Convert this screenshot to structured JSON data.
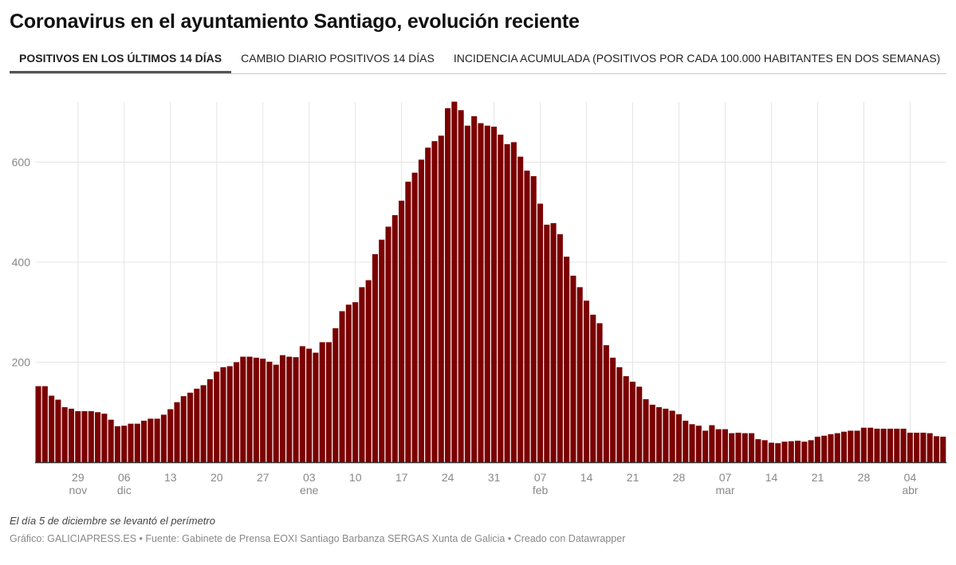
{
  "title": "Coronavirus en el ayuntamiento Santiago, evolución reciente",
  "tabs": [
    {
      "label": "POSITIVOS EN LOS ÚLTIMOS 14 DÍAS",
      "active": true
    },
    {
      "label": "CAMBIO DIARIO POSITIVOS 14 DÍAS",
      "active": false
    },
    {
      "label": "INCIDENCIA ACUMULADA (POSITIVOS POR CADA 100.000 HABITANTES EN DOS SEMANAS)",
      "active": false
    }
  ],
  "note": "El día 5 de diciembre se levantó el perímetro",
  "source": "Gráfico: GALICIAPRESS.ES • Fuente: Gabinete de Prensa EOXI Santiago Barbanza SERGAS Xunta de Galicia • Creado con Datawrapper",
  "chart_data": {
    "type": "bar",
    "title": "",
    "xlabel": "",
    "ylabel": "",
    "ylim": [
      0,
      720
    ],
    "grid": true,
    "bar_color": "#7b0000",
    "yticks": [
      200,
      400,
      600
    ],
    "xticks": [
      {
        "date": "29 nov",
        "label": "29",
        "sub": "nov"
      },
      {
        "date": "6 dic",
        "label": "06",
        "sub": "dic"
      },
      {
        "date": "13 dic",
        "label": "13",
        "sub": ""
      },
      {
        "date": "20 dic",
        "label": "20",
        "sub": ""
      },
      {
        "date": "27 dic",
        "label": "27",
        "sub": ""
      },
      {
        "date": "3 ene",
        "label": "03",
        "sub": "ene"
      },
      {
        "date": "10 ene",
        "label": "10",
        "sub": ""
      },
      {
        "date": "17 ene",
        "label": "17",
        "sub": ""
      },
      {
        "date": "24 ene",
        "label": "24",
        "sub": ""
      },
      {
        "date": "31 ene",
        "label": "31",
        "sub": ""
      },
      {
        "date": "7 feb",
        "label": "07",
        "sub": "feb"
      },
      {
        "date": "14 feb",
        "label": "14",
        "sub": ""
      },
      {
        "date": "21 feb",
        "label": "21",
        "sub": ""
      },
      {
        "date": "28 feb",
        "label": "28",
        "sub": ""
      },
      {
        "date": "7 mar",
        "label": "07",
        "sub": "mar"
      },
      {
        "date": "14 mar",
        "label": "14",
        "sub": ""
      },
      {
        "date": "21 mar",
        "label": "21",
        "sub": ""
      },
      {
        "date": "28 mar",
        "label": "28",
        "sub": ""
      },
      {
        "date": "4 abr",
        "label": "04",
        "sub": "abr"
      }
    ],
    "x": [
      "23 nov",
      "24 nov",
      "25 nov",
      "26 nov",
      "27 nov",
      "28 nov",
      "29 nov",
      "30 nov",
      "1 dic",
      "2 dic",
      "3 dic",
      "4 dic",
      "5 dic",
      "6 dic",
      "7 dic",
      "8 dic",
      "9 dic",
      "10 dic",
      "11 dic",
      "12 dic",
      "13 dic",
      "14 dic",
      "15 dic",
      "16 dic",
      "17 dic",
      "18 dic",
      "19 dic",
      "20 dic",
      "21 dic",
      "22 dic",
      "23 dic",
      "24 dic",
      "25 dic",
      "26 dic",
      "27 dic",
      "28 dic",
      "29 dic",
      "30 dic",
      "31 dic",
      "1 ene",
      "2 ene",
      "3 ene",
      "4 ene",
      "5 ene",
      "6 ene",
      "7 ene",
      "8 ene",
      "9 ene",
      "10 ene",
      "11 ene",
      "12 ene",
      "13 ene",
      "14 ene",
      "15 ene",
      "16 ene",
      "17 ene",
      "18 ene",
      "19 ene",
      "20 ene",
      "21 ene",
      "22 ene",
      "23 ene",
      "24 ene",
      "25 ene",
      "26 ene",
      "27 ene",
      "28 ene",
      "29 ene",
      "30 ene",
      "31 ene",
      "1 feb",
      "2 feb",
      "3 feb",
      "4 feb",
      "5 feb",
      "6 feb",
      "7 feb",
      "8 feb",
      "9 feb",
      "10 feb",
      "11 feb",
      "12 feb",
      "13 feb",
      "14 feb",
      "15 feb",
      "16 feb",
      "17 feb",
      "18 feb",
      "19 feb",
      "20 feb",
      "21 feb",
      "22 feb",
      "23 feb",
      "24 feb",
      "25 feb",
      "26 feb",
      "27 feb",
      "28 feb",
      "1 mar",
      "2 mar",
      "3 mar",
      "4 mar",
      "5 mar",
      "6 mar",
      "7 mar",
      "8 mar",
      "9 mar",
      "10 mar",
      "11 mar",
      "12 mar",
      "13 mar",
      "14 mar",
      "15 mar",
      "16 mar",
      "17 mar",
      "18 mar",
      "19 mar",
      "20 mar",
      "21 mar",
      "22 mar",
      "23 mar",
      "24 mar",
      "25 mar",
      "26 mar",
      "27 mar",
      "28 mar",
      "29 mar",
      "30 mar",
      "31 mar",
      "1 abr",
      "2 abr",
      "3 abr",
      "4 abr",
      "5 abr",
      "6 abr",
      "7 abr",
      "8 abr",
      "9 abr"
    ],
    "values": [
      152,
      152,
      133,
      125,
      110,
      107,
      102,
      102,
      102,
      100,
      97,
      85,
      72,
      73,
      77,
      77,
      83,
      87,
      87,
      95,
      106,
      120,
      132,
      139,
      147,
      154,
      166,
      181,
      190,
      192,
      200,
      211,
      211,
      209,
      207,
      201,
      195,
      214,
      211,
      210,
      232,
      227,
      219,
      240,
      240,
      268,
      302,
      315,
      320,
      350,
      364,
      416,
      445,
      471,
      494,
      523,
      561,
      579,
      605,
      629,
      642,
      653,
      708,
      721,
      704,
      673,
      692,
      678,
      673,
      671,
      655,
      636,
      640,
      611,
      583,
      572,
      517,
      475,
      478,
      456,
      411,
      373,
      350,
      323,
      295,
      278,
      234,
      209,
      190,
      172,
      161,
      151,
      126,
      115,
      110,
      107,
      103,
      96,
      83,
      76,
      73,
      63,
      74,
      66,
      66,
      58,
      59,
      58,
      58,
      46,
      44,
      39,
      38,
      41,
      42,
      43,
      41,
      44,
      51,
      53,
      56,
      58,
      61,
      63,
      63,
      69,
      69,
      67,
      67,
      67,
      67,
      67,
      59,
      59,
      59,
      58,
      52,
      51
    ]
  }
}
